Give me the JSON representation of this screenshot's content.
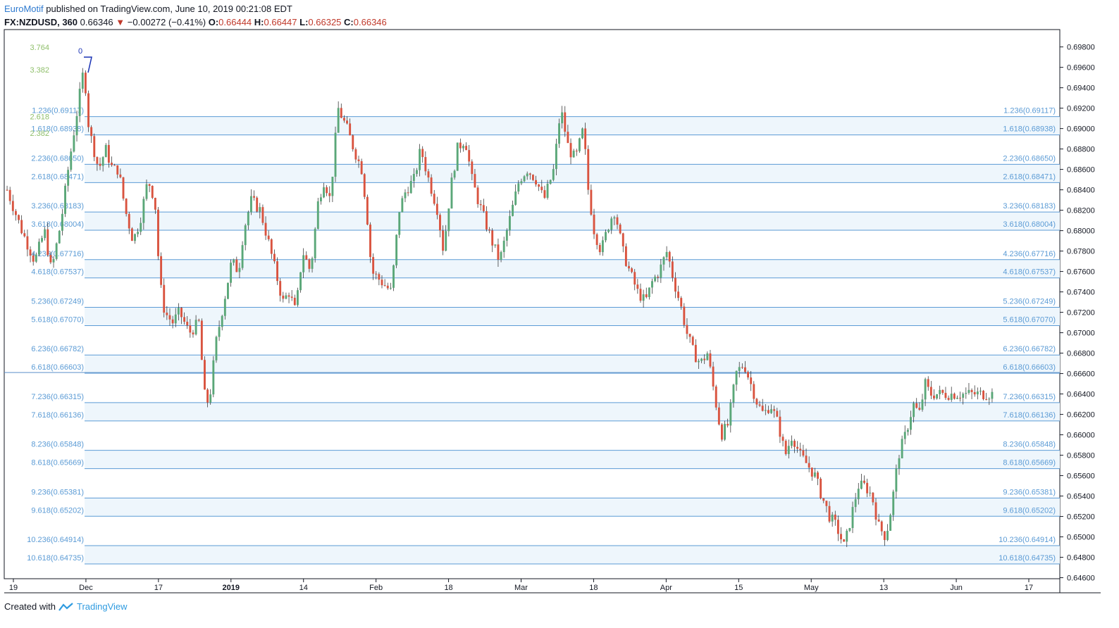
{
  "header": {
    "author": "EuroMotif",
    "published": "published on TradingView.com, June 10, 2019 00:21:08 EDT",
    "symbol": "FX:NZDUSD, 360",
    "last": "0.66346",
    "change": "−0.00272 (−0.41%)",
    "o_label": "O:",
    "o": "0.66444",
    "h_label": "H:",
    "h": "0.66447",
    "l_label": "L:",
    "l": "0.66325",
    "c_label": "C:",
    "c": "0.66346"
  },
  "footer": {
    "created_with": "Created with",
    "brand": "TradingView"
  },
  "colors": {
    "up": "#5aa778",
    "down": "#d9533f",
    "fib": "#5b9bd5",
    "fib_fill": "#eef6fc",
    "axis": "#131722"
  },
  "chart_data": {
    "type": "candlestick",
    "ylim": [
      0.6459,
      0.6997
    ],
    "y_ticks": [
      "0.69800",
      "0.69600",
      "0.69400",
      "0.69200",
      "0.69000",
      "0.68800",
      "0.68600",
      "0.68400",
      "0.68200",
      "0.68000",
      "0.67800",
      "0.67600",
      "0.67400",
      "0.67200",
      "0.67000",
      "0.66800",
      "0.66600",
      "0.66400",
      "0.66200",
      "0.66000",
      "0.65800",
      "0.65600",
      "0.65400",
      "0.65200",
      "0.65000",
      "0.64800",
      "0.64600"
    ],
    "x_ticks": [
      "19",
      "Dec",
      "17",
      "2019",
      "14",
      "Feb",
      "18",
      "Mar",
      "18",
      "Apr",
      "15",
      "May",
      "13",
      "Jun",
      "17"
    ],
    "x_ticks_bold": [
      "2019"
    ],
    "fib_levels": [
      {
        "label": "1.236(0.69117)",
        "value": 0.69117
      },
      {
        "label": "1.618(0.68938)",
        "value": 0.68938
      },
      {
        "label": "2.236(0.68650)",
        "value": 0.6865
      },
      {
        "label": "2.618(0.68471)",
        "value": 0.68471
      },
      {
        "label": "3.236(0.68183)",
        "value": 0.68183
      },
      {
        "label": "3.618(0.68004)",
        "value": 0.68004
      },
      {
        "label": "4.236(0.67716)",
        "value": 0.67716
      },
      {
        "label": "4.618(0.67537)",
        "value": 0.67537
      },
      {
        "label": "5.236(0.67249)",
        "value": 0.67249
      },
      {
        "label": "5.618(0.67070)",
        "value": 0.6707
      },
      {
        "label": "6.236(0.66782)",
        "value": 0.66782
      },
      {
        "label": "6.618(0.66603)",
        "value": 0.66603
      },
      {
        "label": "7.236(0.66315)",
        "value": 0.66315
      },
      {
        "label": "7.618(0.66136)",
        "value": 0.66136
      },
      {
        "label": "8.236(0.65848)",
        "value": 0.65848
      },
      {
        "label": "8.618(0.65669)",
        "value": 0.65669
      },
      {
        "label": "9.236(0.65381)",
        "value": 0.65381
      },
      {
        "label": "9.618(0.65202)",
        "value": 0.65202
      },
      {
        "label": "10.236(0.64914)",
        "value": 0.64914
      },
      {
        "label": "10.618(0.64735)",
        "value": 0.64735
      }
    ],
    "extra_levels": [
      {
        "label": "3.764",
        "value": 0.6977
      },
      {
        "label": "3.382",
        "value": 0.6955
      },
      {
        "label": "2.618",
        "value": 0.6909
      },
      {
        "label": "2.382",
        "value": 0.6893
      }
    ],
    "zero_marker": {
      "label": "0",
      "value": 0.697
    },
    "horizontal_line": 0.6661,
    "price_path": [
      [
        0.684,
        0.0
      ],
      [
        0.68,
        0.015
      ],
      [
        0.677,
        0.028
      ],
      [
        0.68,
        0.038
      ],
      [
        0.676,
        0.045
      ],
      [
        0.681,
        0.055
      ],
      [
        0.686,
        0.062
      ],
      [
        0.691,
        0.07
      ],
      [
        0.696,
        0.078
      ],
      [
        0.69,
        0.083
      ],
      [
        0.688,
        0.088
      ],
      [
        0.686,
        0.093
      ],
      [
        0.688,
        0.1
      ],
      [
        0.686,
        0.107
      ],
      [
        0.686,
        0.113
      ],
      [
        0.682,
        0.12
      ],
      [
        0.679,
        0.128
      ],
      [
        0.681,
        0.135
      ],
      [
        0.685,
        0.143
      ],
      [
        0.683,
        0.15
      ],
      [
        0.675,
        0.155
      ],
      [
        0.672,
        0.16
      ],
      [
        0.671,
        0.168
      ],
      [
        0.672,
        0.175
      ],
      [
        0.67,
        0.185
      ],
      [
        0.671,
        0.195
      ],
      [
        0.664,
        0.2
      ],
      [
        0.663,
        0.205
      ],
      [
        0.669,
        0.212
      ],
      [
        0.672,
        0.218
      ],
      [
        0.677,
        0.228
      ],
      [
        0.676,
        0.235
      ],
      [
        0.68,
        0.24
      ],
      [
        0.683,
        0.248
      ],
      [
        0.682,
        0.257
      ],
      [
        0.679,
        0.265
      ],
      [
        0.677,
        0.27
      ],
      [
        0.675,
        0.275
      ],
      [
        0.673,
        0.28
      ],
      [
        0.674,
        0.286
      ],
      [
        0.672,
        0.293
      ],
      [
        0.678,
        0.3
      ],
      [
        0.676,
        0.308
      ],
      [
        0.683,
        0.316
      ],
      [
        0.685,
        0.322
      ],
      [
        0.683,
        0.328
      ],
      [
        0.692,
        0.336
      ],
      [
        0.69,
        0.345
      ],
      [
        0.688,
        0.352
      ],
      [
        0.686,
        0.36
      ],
      [
        0.682,
        0.365
      ],
      [
        0.676,
        0.37
      ],
      [
        0.675,
        0.38
      ],
      [
        0.674,
        0.39
      ],
      [
        0.682,
        0.398
      ],
      [
        0.684,
        0.405
      ],
      [
        0.685,
        0.413
      ],
      [
        0.688,
        0.42
      ],
      [
        0.685,
        0.428
      ],
      [
        0.682,
        0.437
      ],
      [
        0.678,
        0.443
      ],
      [
        0.684,
        0.45
      ],
      [
        0.688,
        0.457
      ],
      [
        0.689,
        0.465
      ],
      [
        0.685,
        0.472
      ],
      [
        0.683,
        0.478
      ],
      [
        0.681,
        0.485
      ],
      [
        0.679,
        0.492
      ],
      [
        0.677,
        0.5
      ],
      [
        0.681,
        0.51
      ],
      [
        0.685,
        0.52
      ],
      [
        0.686,
        0.528
      ],
      [
        0.685,
        0.537
      ],
      [
        0.683,
        0.545
      ],
      [
        0.686,
        0.555
      ],
      [
        0.692,
        0.562
      ],
      [
        0.688,
        0.57
      ],
      [
        0.687,
        0.577
      ],
      [
        0.69,
        0.585
      ],
      [
        0.684,
        0.59
      ],
      [
        0.68,
        0.596
      ],
      [
        0.678,
        0.603
      ],
      [
        0.681,
        0.612
      ],
      [
        0.682,
        0.617
      ],
      [
        0.678,
        0.625
      ],
      [
        0.676,
        0.632
      ],
      [
        0.674,
        0.64
      ],
      [
        0.673,
        0.648
      ],
      [
        0.675,
        0.655
      ],
      [
        0.676,
        0.662
      ],
      [
        0.678,
        0.67
      ],
      [
        0.675,
        0.677
      ],
      [
        0.673,
        0.683
      ],
      [
        0.67,
        0.69
      ],
      [
        0.668,
        0.697
      ],
      [
        0.667,
        0.704
      ],
      [
        0.668,
        0.711
      ],
      [
        0.664,
        0.718
      ],
      [
        0.66,
        0.725
      ],
      [
        0.661,
        0.732
      ],
      [
        0.666,
        0.74
      ],
      [
        0.667,
        0.748
      ],
      [
        0.665,
        0.755
      ],
      [
        0.663,
        0.762
      ],
      [
        0.662,
        0.768
      ],
      [
        0.663,
        0.775
      ],
      [
        0.661,
        0.783
      ],
      [
        0.658,
        0.79
      ],
      [
        0.66,
        0.797
      ],
      [
        0.658,
        0.805
      ],
      [
        0.657,
        0.813
      ],
      [
        0.656,
        0.82
      ],
      [
        0.654,
        0.827
      ],
      [
        0.652,
        0.835
      ],
      [
        0.651,
        0.842
      ],
      [
        0.649,
        0.85
      ],
      [
        0.652,
        0.857
      ],
      [
        0.655,
        0.864
      ],
      [
        0.655,
        0.871
      ],
      [
        0.654,
        0.878
      ],
      [
        0.651,
        0.885
      ],
      [
        0.65,
        0.892
      ],
      [
        0.653,
        0.898
      ],
      [
        0.658,
        0.905
      ],
      [
        0.66,
        0.912
      ],
      [
        0.663,
        0.92
      ],
      [
        0.662,
        0.926
      ],
      [
        0.665,
        0.932
      ],
      [
        0.664,
        0.937
      ]
    ]
  }
}
